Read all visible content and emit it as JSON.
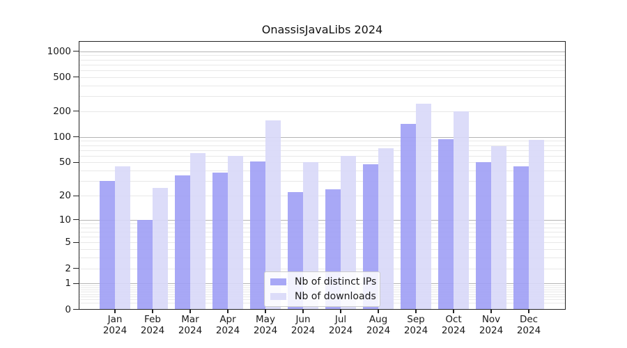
{
  "chart_data": {
    "type": "bar",
    "title": "OnassisJavaLibs 2024",
    "categories": [
      "Jan 2024",
      "Feb 2024",
      "Mar 2024",
      "Apr 2024",
      "May 2024",
      "Jun 2024",
      "Jul 2024",
      "Aug 2024",
      "Sep 2024",
      "Oct 2024",
      "Nov 2024",
      "Dec 2024"
    ],
    "series": [
      {
        "name": "Nb of distinct IPs",
        "color": "#9f9ff5",
        "values": [
          30,
          10,
          35,
          38,
          51,
          22,
          24,
          48,
          143,
          95,
          50,
          45
        ]
      },
      {
        "name": "Nb of downloads",
        "color": "#d8d8f8",
        "values": [
          45,
          25,
          65,
          60,
          155,
          50,
          60,
          74,
          245,
          200,
          78,
          93
        ]
      }
    ],
    "xlabel": "",
    "ylabel": "",
    "yscale": "log1p",
    "yticks": [
      0,
      1,
      2,
      5,
      10,
      20,
      50,
      100,
      200,
      500,
      1000
    ],
    "ylim": [
      0,
      1300
    ],
    "grid": true,
    "legend": {
      "position": "lower-center"
    },
    "colors": {
      "major_grid": "#b4b4b4",
      "minor_grid": "#e8e8e8",
      "spine": "#222222",
      "background": "#ffffff"
    }
  }
}
